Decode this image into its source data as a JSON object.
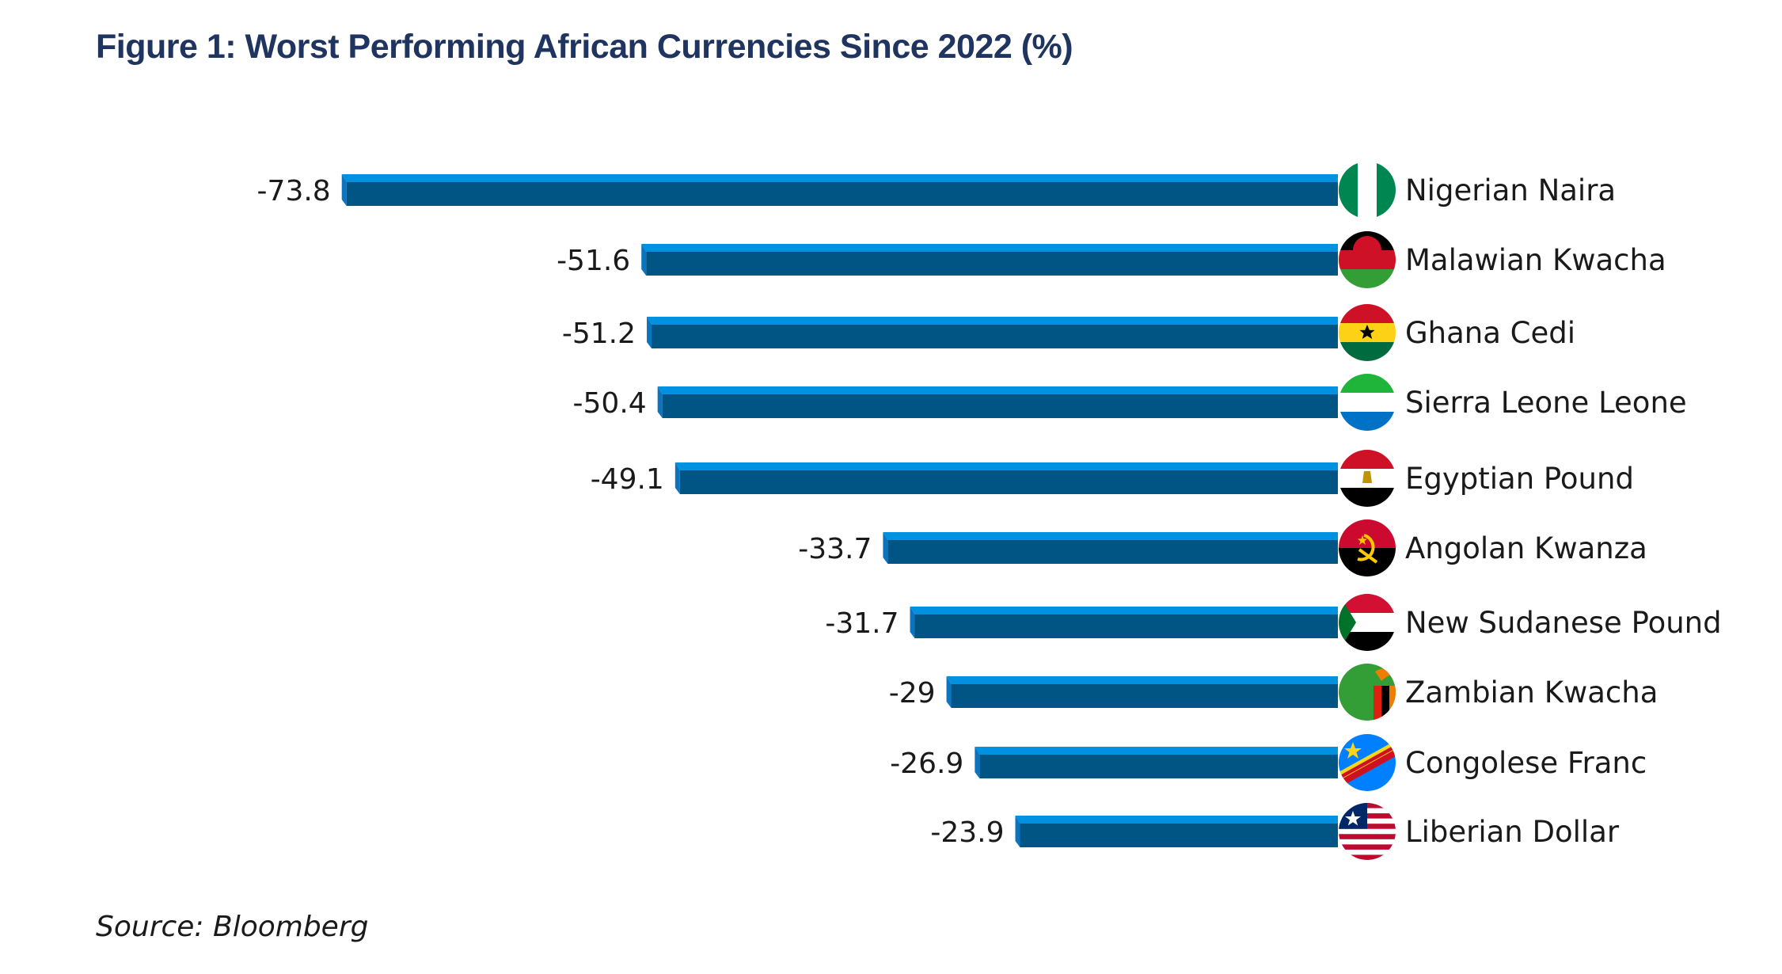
{
  "chart_data": {
    "type": "bar",
    "orientation": "horizontal",
    "title": "Figure 1: Worst Performing African Currencies Since 2022 (%)",
    "source": "Source: Bloomberg",
    "xlabel": "",
    "ylabel": "",
    "xlim": [
      -80,
      0
    ],
    "grid": false,
    "categories": [
      "Nigerian Naira",
      "Malawian Kwacha",
      "Ghana Cedi",
      "Sierra Leone Leone",
      "Egyptian Pound",
      "Angolan Kwanza",
      "New Sudanese Pound",
      "Zambian Kwacha",
      "Congolese Franc",
      "Liberian Dollar"
    ],
    "values": [
      -73.8,
      -51.6,
      -51.2,
      -50.4,
      -49.1,
      -33.7,
      -31.7,
      -29,
      -26.9,
      -23.9
    ],
    "value_labels": [
      "-73.8",
      "-51.6",
      "-51.2",
      "-50.4",
      "-49.1",
      "-33.7",
      "-31.7",
      "-29",
      "-26.9",
      "-23.9"
    ],
    "flag_icons": [
      "nigeria-flag-icon",
      "malawi-flag-icon",
      "ghana-flag-icon",
      "sierra-leone-flag-icon",
      "egypt-flag-icon",
      "angola-flag-icon",
      "sudan-flag-icon",
      "zambia-flag-icon",
      "dr-congo-flag-icon",
      "liberia-flag-icon"
    ]
  },
  "colors": {
    "title": "#1f3560",
    "bar_front": "#005584",
    "bar_top": "#0092e0",
    "bar_side": "#0a74bf",
    "text": "#1a1a1a"
  }
}
